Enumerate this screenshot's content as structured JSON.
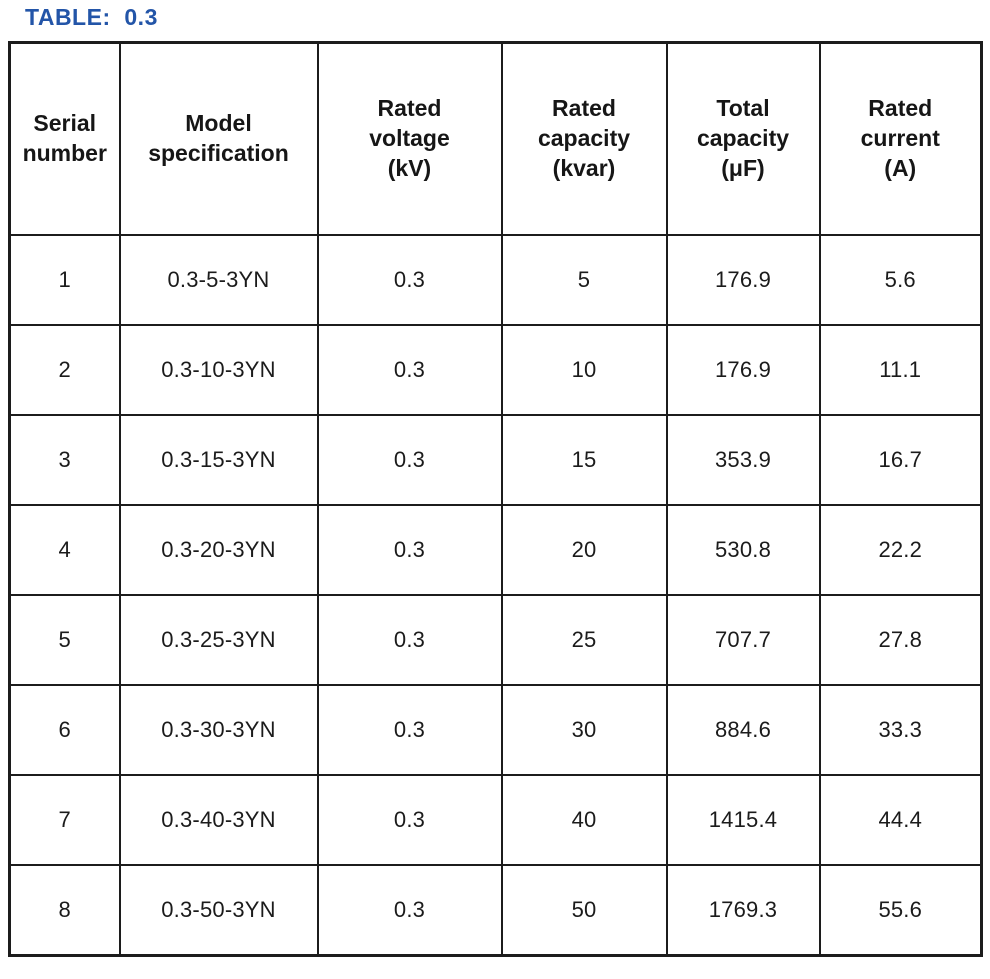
{
  "title": {
    "text": "TABLE:  0.3"
  },
  "colors": {
    "title_blue": "#2355a8",
    "border": "#1c1c1c",
    "text": "#1b1b1b",
    "background": "#ffffff"
  },
  "table": {
    "columns": [
      {
        "id": "serial",
        "label": "Serial number",
        "lines": [
          "Serial",
          "number"
        ]
      },
      {
        "id": "model",
        "label": "Model specification",
        "lines": [
          "Model",
          "specification"
        ]
      },
      {
        "id": "voltage",
        "label": "Rated voltage (kV)",
        "lines": [
          "Rated",
          "voltage",
          "(kV)"
        ]
      },
      {
        "id": "capacity",
        "label": "Rated capacity (kvar)",
        "lines": [
          "Rated",
          "capacity",
          "(kvar)"
        ]
      },
      {
        "id": "total-capacity",
        "label": "Total capacity (μF)",
        "lines": [
          "Total",
          "capacity",
          "(μF)"
        ]
      },
      {
        "id": "current",
        "label": "Rated current (A)",
        "lines": [
          "Rated",
          "current",
          "(A)"
        ]
      }
    ],
    "rows": [
      [
        "1",
        "0.3-5-3YN",
        "0.3",
        "5",
        "176.9",
        "5.6"
      ],
      [
        "2",
        "0.3-10-3YN",
        "0.3",
        "10",
        "176.9",
        "11.1"
      ],
      [
        "3",
        "0.3-15-3YN",
        "0.3",
        "15",
        "353.9",
        "16.7"
      ],
      [
        "4",
        "0.3-20-3YN",
        "0.3",
        "20",
        "530.8",
        "22.2"
      ],
      [
        "5",
        "0.3-25-3YN",
        "0.3",
        "25",
        "707.7",
        "27.8"
      ],
      [
        "6",
        "0.3-30-3YN",
        "0.3",
        "30",
        "884.6",
        "33.3"
      ],
      [
        "7",
        "0.3-40-3YN",
        "0.3",
        "40",
        "1415.4",
        "44.4"
      ],
      [
        "8",
        "0.3-50-3YN",
        "0.3",
        "50",
        "1769.3",
        "55.6"
      ]
    ]
  }
}
